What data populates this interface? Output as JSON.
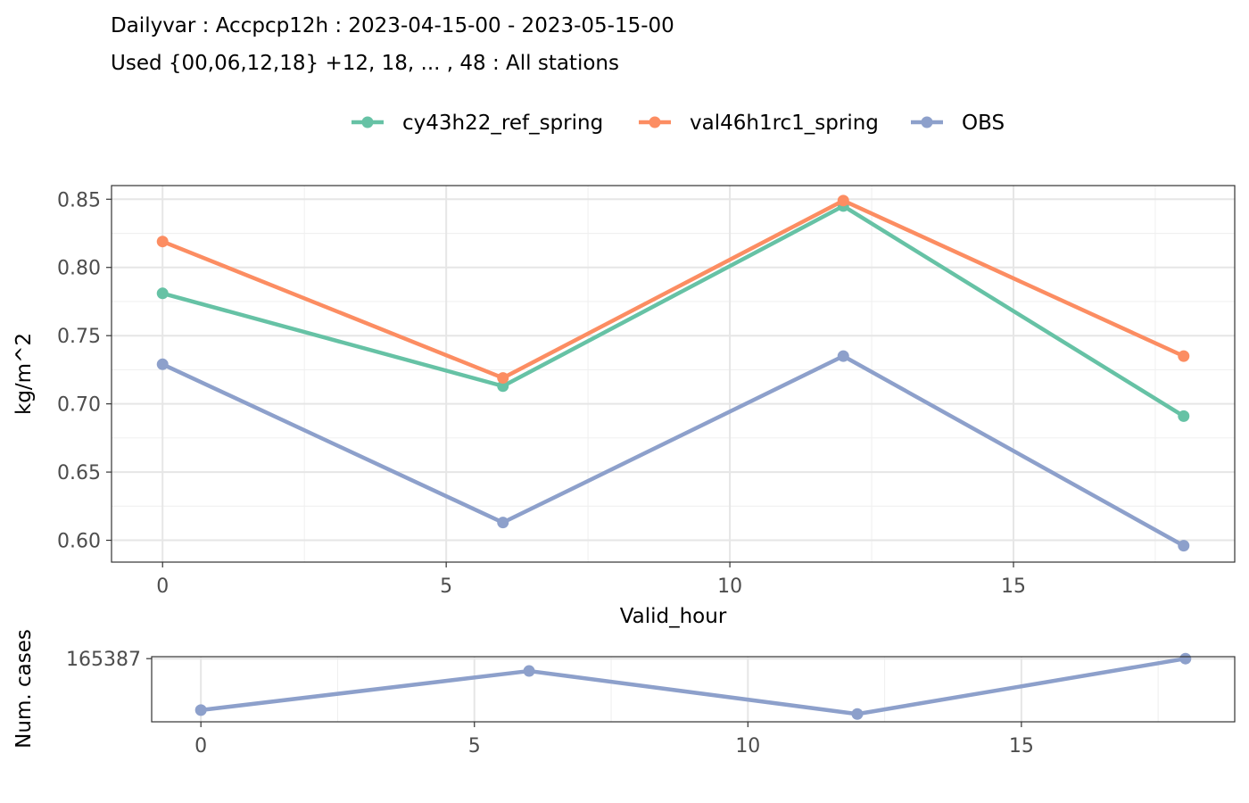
{
  "title_lines": [
    "Dailyvar : Accpcp12h : 2023-04-15-00 - 2023-05-15-00",
    "Used {00,06,12,18} +12, 18, ... , 48 : All stations"
  ],
  "colors": {
    "cy43h22_ref_spring": "#66c2a5",
    "val46h1rc1_spring": "#fc8d62",
    "OBS": "#8da0cb"
  },
  "chart_data": [
    {
      "type": "line",
      "xlabel": "Valid_hour",
      "ylabel": "kg/m^2",
      "x": [
        0,
        6,
        12,
        18
      ],
      "xlim": [
        -0.9,
        18.9
      ],
      "ylim": [
        0.584,
        0.86
      ],
      "x_ticks": [
        0,
        5,
        10,
        15
      ],
      "y_ticks": [
        0.6,
        0.65,
        0.7,
        0.75,
        0.8,
        0.85
      ],
      "y_tick_labels": [
        "0.60",
        "0.65",
        "0.70",
        "0.75",
        "0.80",
        "0.85"
      ],
      "grid": true,
      "legend_position": "top",
      "series": [
        {
          "name": "cy43h22_ref_spring",
          "values": [
            0.781,
            0.713,
            0.845,
            0.691
          ]
        },
        {
          "name": "val46h1rc1_spring",
          "values": [
            0.819,
            0.719,
            0.849,
            0.735
          ]
        },
        {
          "name": "OBS",
          "values": [
            0.729,
            0.613,
            0.735,
            0.596
          ]
        }
      ]
    },
    {
      "type": "line",
      "ylabel": "Num. cases",
      "x": [
        0,
        6,
        12,
        18
      ],
      "xlim": [
        -0.9,
        18.9
      ],
      "ylim": [
        165290,
        165390
      ],
      "x_ticks": [
        0,
        5,
        10,
        15
      ],
      "y_ticks": [
        165387
      ],
      "y_tick_labels": [
        "165387"
      ],
      "grid": true,
      "series": [
        {
          "values": [
            165308,
            165368,
            165302,
            165387
          ]
        }
      ]
    }
  ]
}
